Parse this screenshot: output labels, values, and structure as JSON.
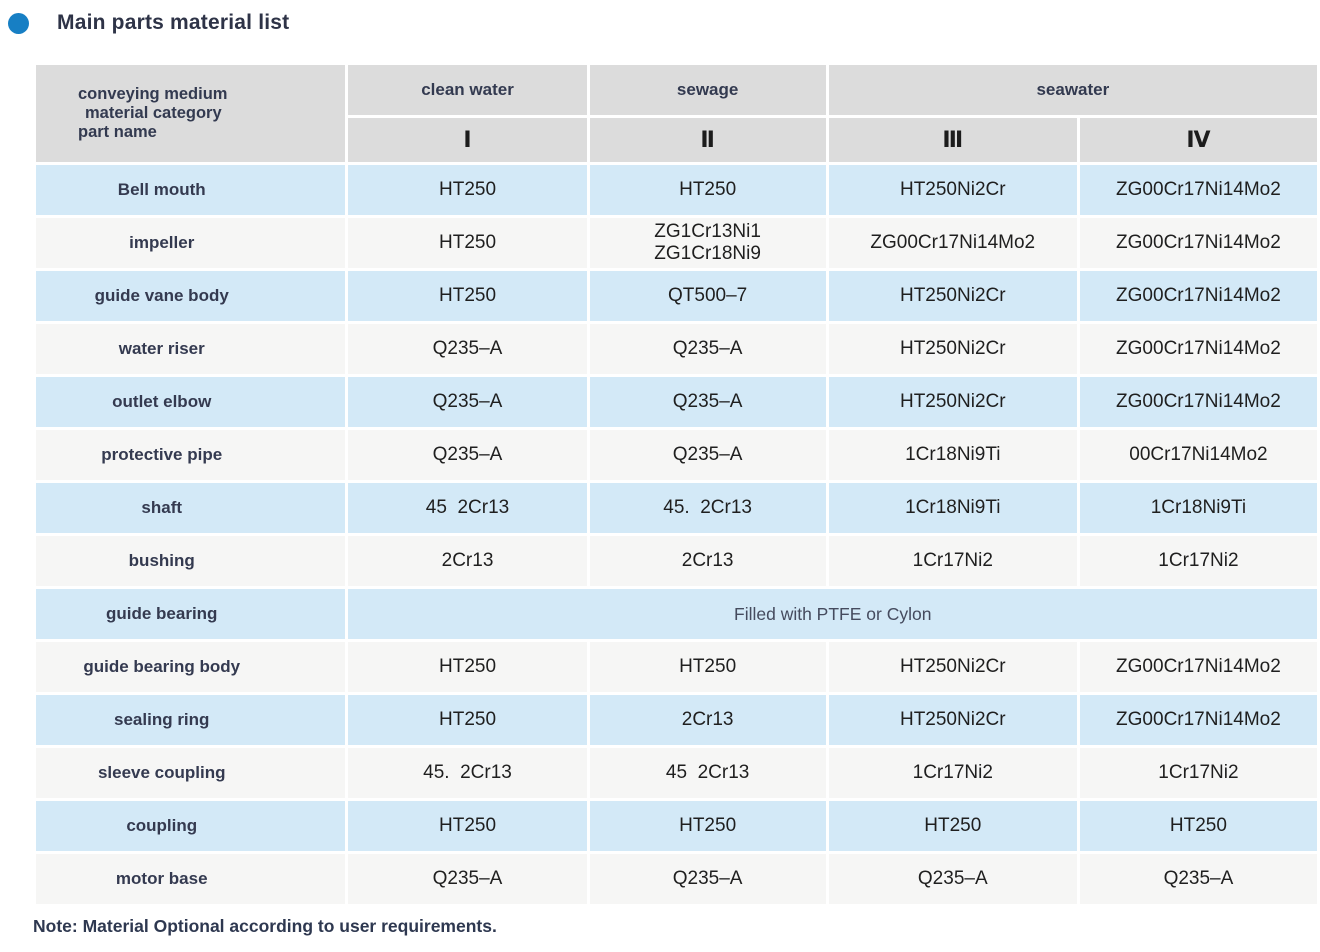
{
  "page": {
    "title": "Main parts material list",
    "note": "Note: Material Optional according to user requirements.",
    "accent_color": "#177fc4",
    "colors": {
      "header_bg": "#dcdcdc",
      "row_blue": "#d3e9f7",
      "row_light": "#f6f6f5",
      "heading_text": "#2e3347"
    }
  },
  "table": {
    "corner_header": {
      "line1": "conveying medium",
      "line2": "material category",
      "line3": "part name"
    },
    "medium_headers": [
      {
        "label": "clean water",
        "span": 1
      },
      {
        "label": "sewage",
        "span": 1
      },
      {
        "label": "seawater",
        "span": 2
      }
    ],
    "category_headers": [
      "Ⅰ",
      "Ⅱ",
      "Ⅲ",
      "Ⅳ"
    ],
    "rows": [
      {
        "name": "Bell mouth",
        "values": [
          "HT250",
          "HT250",
          "HT250Ni2Cr",
          "ZG00Cr17Ni14Mo2"
        ]
      },
      {
        "name": "impeller",
        "values": [
          "HT250",
          "ZG1Cr13Ni1\nZG1Cr18Ni9",
          "ZG00Cr17Ni14Mo2",
          "ZG00Cr17Ni14Mo2"
        ]
      },
      {
        "name": "guide vane body",
        "values": [
          "HT250",
          "QT500–7",
          "HT250Ni2Cr",
          "ZG00Cr17Ni14Mo2"
        ]
      },
      {
        "name": "water riser",
        "values": [
          "Q235–A",
          "Q235–A",
          "HT250Ni2Cr",
          "ZG00Cr17Ni14Mo2"
        ]
      },
      {
        "name": "outlet elbow",
        "values": [
          "Q235–A",
          "Q235–A",
          "HT250Ni2Cr",
          "ZG00Cr17Ni14Mo2"
        ]
      },
      {
        "name": "protective pipe",
        "values": [
          "Q235–A",
          "Q235–A",
          "1Cr18Ni9Ti",
          "00Cr17Ni14Mo2"
        ]
      },
      {
        "name": "shaft",
        "values": [
          "45  2Cr13",
          "45.  2Cr13",
          "1Cr18Ni9Ti",
          "1Cr18Ni9Ti"
        ]
      },
      {
        "name": "bushing",
        "values": [
          "2Cr13",
          "2Cr13",
          "1Cr17Ni2",
          "1Cr17Ni2"
        ]
      },
      {
        "name": "guide bearing",
        "merged_value": "Filled with PTFE or Cylon"
      },
      {
        "name": "guide bearing body",
        "values": [
          "HT250",
          "HT250",
          "HT250Ni2Cr",
          "ZG00Cr17Ni14Mo2"
        ]
      },
      {
        "name": "sealing ring",
        "values": [
          "HT250",
          "2Cr13",
          "HT250Ni2Cr",
          "ZG00Cr17Ni14Mo2"
        ]
      },
      {
        "name": "sleeve coupling",
        "values": [
          "45.  2Cr13",
          "45  2Cr13",
          "1Cr17Ni2",
          "1Cr17Ni2"
        ]
      },
      {
        "name": "coupling",
        "values": [
          "HT250",
          "HT250",
          "HT250",
          "HT250"
        ]
      },
      {
        "name": "motor base",
        "values": [
          "Q235–A",
          "Q235–A",
          "Q235–A",
          "Q235–A"
        ]
      }
    ]
  }
}
